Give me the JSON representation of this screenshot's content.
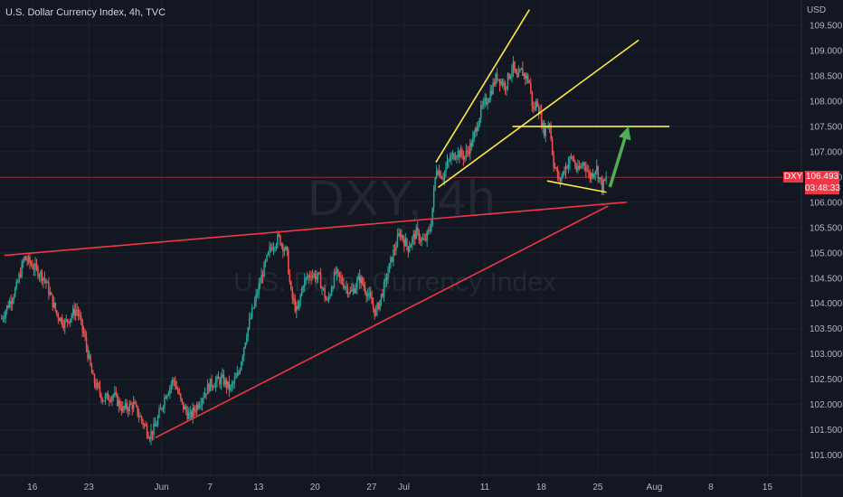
{
  "header": {
    "title": "U.S. Dollar Currency Index, 4h, TVC",
    "currency": "USD"
  },
  "watermark": {
    "symbol": "DXY, 4h",
    "name": "U.S. Dollar Currency Index"
  },
  "last_price": {
    "symbol": "DXY",
    "price": "106.493",
    "countdown": "03:48:33"
  },
  "colors": {
    "background": "#131722",
    "up": "#26a69a",
    "down": "#ef5350",
    "trend_red": "#f23645",
    "trend_yellow": "#ffeb3b",
    "arrow_green": "#4caf50"
  },
  "chart_data": {
    "type": "candlestick",
    "y_ticks": [
      "109.500",
      "109.000",
      "108.500",
      "108.000",
      "107.500",
      "107.000",
      "106.500",
      "106.000",
      "105.500",
      "105.000",
      "104.500",
      "104.000",
      "103.500",
      "103.000",
      "102.500",
      "102.000",
      "101.500",
      "101.000"
    ],
    "ylim": [
      100.6,
      110.0
    ],
    "x_ticks": [
      {
        "label": "16",
        "day": 16
      },
      {
        "label": "23",
        "day": 23
      },
      {
        "label": "Jun",
        "day": 32
      },
      {
        "label": "7",
        "day": 38
      },
      {
        "label": "13",
        "day": 44
      },
      {
        "label": "20",
        "day": 51
      },
      {
        "label": "27",
        "day": 58
      },
      {
        "label": "Jul",
        "day": 62
      },
      {
        "label": "11",
        "day": 72
      },
      {
        "label": "18",
        "day": 79
      },
      {
        "label": "25",
        "day": 86
      },
      {
        "label": "Aug",
        "day": 93
      },
      {
        "label": "8",
        "day": 100
      },
      {
        "label": "15",
        "day": 107
      }
    ],
    "xlim": [
      12.0,
      111.2
    ],
    "price_path": [
      [
        12.2,
        103.7
      ],
      [
        14.0,
        104.3
      ],
      [
        15.0,
        104.9
      ],
      [
        16.0,
        104.75
      ],
      [
        17.5,
        104.5
      ],
      [
        19.0,
        103.8
      ],
      [
        20.0,
        103.6
      ],
      [
        21.5,
        103.9
      ],
      [
        22.5,
        103.3
      ],
      [
        23.5,
        102.5
      ],
      [
        24.8,
        102.1
      ],
      [
        26.0,
        102.2
      ],
      [
        27.2,
        101.9
      ],
      [
        28.5,
        102.0
      ],
      [
        29.5,
        101.7
      ],
      [
        30.5,
        101.4
      ],
      [
        31.2,
        101.55
      ],
      [
        32.5,
        102.2
      ],
      [
        33.5,
        102.5
      ],
      [
        34.5,
        102.0
      ],
      [
        35.5,
        101.75
      ],
      [
        36.8,
        102.1
      ],
      [
        38.0,
        102.4
      ],
      [
        39.5,
        102.5
      ],
      [
        40.5,
        102.3
      ],
      [
        41.5,
        102.6
      ],
      [
        42.5,
        103.4
      ],
      [
        43.5,
        104.0
      ],
      [
        44.5,
        104.6
      ],
      [
        45.5,
        105.1
      ],
      [
        46.5,
        105.3
      ],
      [
        47.5,
        105.0
      ],
      [
        48.0,
        104.2
      ],
      [
        48.8,
        103.8
      ],
      [
        49.5,
        104.4
      ],
      [
        50.5,
        104.6
      ],
      [
        51.5,
        104.5
      ],
      [
        52.5,
        104.0
      ],
      [
        53.5,
        104.6
      ],
      [
        54.5,
        104.4
      ],
      [
        55.5,
        104.2
      ],
      [
        56.5,
        104.5
      ],
      [
        57.5,
        104.2
      ],
      [
        58.5,
        103.8
      ],
      [
        59.5,
        104.3
      ],
      [
        60.5,
        104.9
      ],
      [
        61.5,
        105.4
      ],
      [
        62.5,
        105.1
      ],
      [
        63.5,
        105.4
      ],
      [
        64.5,
        105.2
      ],
      [
        65.3,
        105.5
      ],
      [
        66.0,
        106.7
      ],
      [
        66.8,
        106.5
      ],
      [
        67.5,
        106.8
      ],
      [
        68.5,
        107.0
      ],
      [
        69.5,
        106.9
      ],
      [
        70.5,
        107.2
      ],
      [
        71.5,
        107.8
      ],
      [
        72.5,
        108.1
      ],
      [
        73.5,
        108.5
      ],
      [
        74.5,
        108.3
      ],
      [
        75.5,
        108.7
      ],
      [
        76.0,
        108.4
      ],
      [
        76.5,
        108.6
      ],
      [
        77.5,
        108.4
      ],
      [
        78.0,
        107.8
      ],
      [
        78.5,
        108.0
      ],
      [
        79.3,
        107.4
      ],
      [
        80.0,
        107.6
      ],
      [
        80.5,
        106.8
      ],
      [
        81.2,
        106.4
      ],
      [
        82.0,
        106.7
      ],
      [
        82.8,
        106.9
      ],
      [
        83.5,
        106.6
      ],
      [
        84.3,
        106.8
      ],
      [
        85.0,
        106.5
      ],
      [
        85.8,
        106.7
      ],
      [
        86.5,
        106.3
      ],
      [
        87.2,
        106.5
      ]
    ],
    "trendlines": [
      {
        "name": "upper-resistance-red",
        "color": "#f23645",
        "points": [
          [
            12.6,
            104.95
          ],
          [
            89.5,
            106.0
          ]
        ]
      },
      {
        "name": "lower-support-red",
        "color": "#f23645",
        "points": [
          [
            31.3,
            101.35
          ],
          [
            87.2,
            105.92
          ]
        ]
      },
      {
        "name": "wedge-upper-yellow",
        "color": "#ffeb3b",
        "points": [
          [
            66.0,
            106.8
          ],
          [
            77.5,
            109.8
          ]
        ]
      },
      {
        "name": "wedge-lower-yellow",
        "color": "#ffeb3b",
        "points": [
          [
            66.3,
            106.3
          ],
          [
            91.0,
            109.2
          ]
        ]
      },
      {
        "name": "breakout-level-yellow",
        "color": "#ffeb3b",
        "points": [
          [
            75.5,
            107.5
          ],
          [
            94.8,
            107.5
          ]
        ]
      },
      {
        "name": "flag-bottom-yellow",
        "color": "#ffeb3b",
        "points": [
          [
            79.8,
            106.42
          ],
          [
            87.0,
            106.2
          ]
        ]
      }
    ],
    "last_price_value": 106.493,
    "arrow": {
      "color": "#4caf50",
      "from": [
        87.5,
        106.3
      ],
      "to": [
        89.8,
        107.5
      ]
    }
  }
}
